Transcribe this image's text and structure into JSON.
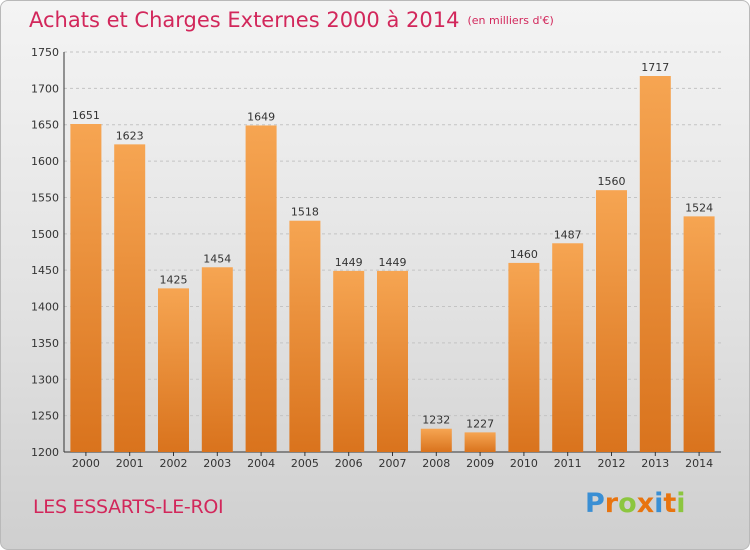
{
  "title": "Achats et Charges Externes 2000 à 2014",
  "unit": "(en milliers d'€)",
  "commune": "LES ESSARTS-LE-ROI",
  "logo": {
    "text": "Proxiti",
    "letter_colors": [
      "#3a8fd4",
      "#e8740f",
      "#8cc63f",
      "#e8740f",
      "#3a8fd4",
      "#e8740f",
      "#8cc63f"
    ]
  },
  "colors": {
    "bar_top": "#f6a552",
    "bar_bottom": "#d9731d",
    "title": "#d2275b"
  },
  "chart_data": {
    "type": "bar",
    "title": "Achats et Charges Externes 2000 à 2014",
    "categories": [
      "2000",
      "2001",
      "2002",
      "2003",
      "2004",
      "2005",
      "2006",
      "2007",
      "2008",
      "2009",
      "2010",
      "2011",
      "2012",
      "2013",
      "2014"
    ],
    "values": [
      1651,
      1623,
      1425,
      1454,
      1649,
      1518,
      1449,
      1449,
      1232,
      1227,
      1460,
      1487,
      1560,
      1717,
      1524
    ],
    "ylim": [
      1200,
      1750
    ],
    "yticks": [
      1200,
      1250,
      1300,
      1350,
      1400,
      1450,
      1500,
      1550,
      1600,
      1650,
      1700,
      1750
    ],
    "grid": true
  }
}
